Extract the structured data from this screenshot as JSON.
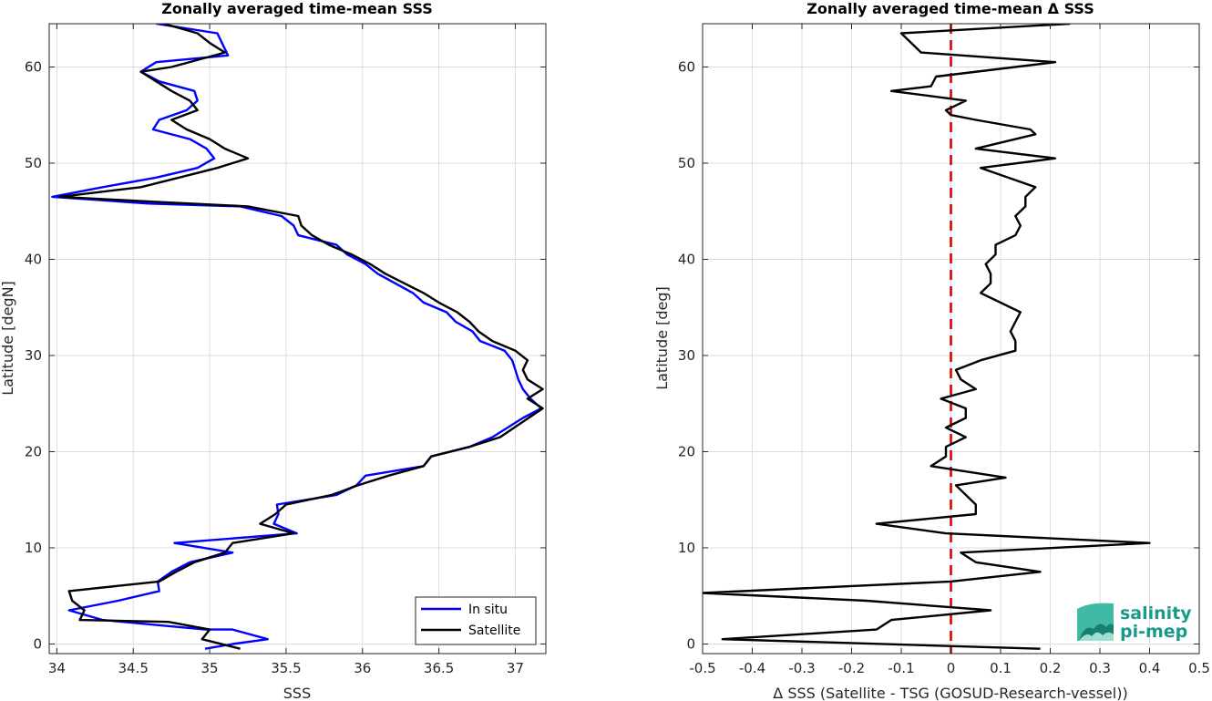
{
  "chart_data": [
    {
      "type": "line",
      "title": "Zonally averaged time-mean SSS",
      "xlabel": "SSS",
      "ylabel": "Latitude [degN]",
      "xlim": [
        33.95,
        37.2
      ],
      "ylim": [
        -1,
        64.5
      ],
      "xticks": [
        34,
        34.5,
        35,
        35.5,
        36,
        36.5,
        37
      ],
      "xticklabels": [
        "34",
        "34.5",
        "35",
        "35.5",
        "36",
        "36.5",
        "37"
      ],
      "yticks": [
        0,
        10,
        20,
        30,
        40,
        50,
        60
      ],
      "yticklabels": [
        "0",
        "10",
        "20",
        "30",
        "40",
        "50",
        "60"
      ],
      "grid": true,
      "legend_position": "bottom-right",
      "series": [
        {
          "name": "In situ",
          "color": "#0000ff",
          "points": [
            [
              34.97,
              -0.5
            ],
            [
              35.15,
              0.0
            ],
            [
              35.38,
              0.5
            ],
            [
              35.15,
              1.5
            ],
            [
              34.97,
              1.5
            ],
            [
              34.3,
              2.5
            ],
            [
              34.08,
              3.5
            ],
            [
              34.4,
              4.5
            ],
            [
              34.67,
              5.5
            ],
            [
              34.66,
              6.5
            ],
            [
              34.75,
              7.5
            ],
            [
              34.87,
              8.5
            ],
            [
              35.15,
              9.5
            ],
            [
              34.77,
              10.5
            ],
            [
              35.57,
              11.5
            ],
            [
              35.42,
              12.5
            ],
            [
              35.45,
              13.5
            ],
            [
              35.44,
              14.5
            ],
            [
              35.83,
              15.5
            ],
            [
              35.96,
              16.5
            ],
            [
              36.02,
              17.5
            ],
            [
              36.4,
              18.5
            ],
            [
              36.45,
              19.5
            ],
            [
              36.7,
              20.5
            ],
            [
              36.85,
              21.5
            ],
            [
              37.05,
              23.5
            ],
            [
              37.17,
              24.5
            ],
            [
              37.1,
              25.5
            ],
            [
              37.05,
              26.5
            ],
            [
              37.02,
              27.5
            ],
            [
              37.0,
              28.5
            ],
            [
              36.98,
              29.5
            ],
            [
              36.93,
              30.5
            ],
            [
              36.77,
              31.5
            ],
            [
              36.72,
              32.5
            ],
            [
              36.61,
              33.5
            ],
            [
              36.55,
              34.5
            ],
            [
              36.4,
              35.5
            ],
            [
              36.33,
              36.5
            ],
            [
              36.1,
              38.5
            ],
            [
              36.02,
              39.5
            ],
            [
              35.9,
              40.5
            ],
            [
              35.83,
              41.5
            ],
            [
              35.58,
              42.5
            ],
            [
              35.55,
              43.5
            ],
            [
              35.47,
              44.5
            ],
            [
              35.2,
              45.5
            ],
            [
              34.6,
              45.8
            ],
            [
              33.97,
              46.5
            ],
            [
              34.3,
              47.5
            ],
            [
              34.65,
              48.5
            ],
            [
              34.92,
              49.5
            ],
            [
              35.03,
              50.5
            ],
            [
              34.98,
              51.5
            ],
            [
              34.87,
              52.5
            ],
            [
              34.63,
              53.5
            ],
            [
              34.67,
              54.5
            ],
            [
              34.85,
              55.5
            ],
            [
              34.92,
              56.5
            ],
            [
              34.9,
              57.5
            ],
            [
              34.67,
              58.5
            ],
            [
              34.55,
              59.5
            ],
            [
              34.65,
              60.5
            ],
            [
              35.12,
              61.2
            ],
            [
              35.05,
              63.5
            ],
            [
              34.65,
              64.5
            ]
          ]
        },
        {
          "name": "Satellite",
          "color": "#000000",
          "points": [
            [
              35.2,
              -0.5
            ],
            [
              34.95,
              0.5
            ],
            [
              35.0,
              1.5
            ],
            [
              34.73,
              2.3
            ],
            [
              34.15,
              2.5
            ],
            [
              34.18,
              3.5
            ],
            [
              34.1,
              4.5
            ],
            [
              34.08,
              5.5
            ],
            [
              34.67,
              6.5
            ],
            [
              34.78,
              7.5
            ],
            [
              34.9,
              8.5
            ],
            [
              35.1,
              9.5
            ],
            [
              35.15,
              10.5
            ],
            [
              35.55,
              11.5
            ],
            [
              35.33,
              12.5
            ],
            [
              35.43,
              13.5
            ],
            [
              35.5,
              14.5
            ],
            [
              35.8,
              15.5
            ],
            [
              35.97,
              16.5
            ],
            [
              36.17,
              17.5
            ],
            [
              36.4,
              18.5
            ],
            [
              36.45,
              19.5
            ],
            [
              36.7,
              20.5
            ],
            [
              36.9,
              21.5
            ],
            [
              37.18,
              24.5
            ],
            [
              37.08,
              25.5
            ],
            [
              37.18,
              26.5
            ],
            [
              37.08,
              27.5
            ],
            [
              37.05,
              28.5
            ],
            [
              37.08,
              29.5
            ],
            [
              37.0,
              30.5
            ],
            [
              36.85,
              31.5
            ],
            [
              36.76,
              32.5
            ],
            [
              36.7,
              33.5
            ],
            [
              36.62,
              34.5
            ],
            [
              36.5,
              35.5
            ],
            [
              36.4,
              36.5
            ],
            [
              36.15,
              38.5
            ],
            [
              36.05,
              39.5
            ],
            [
              35.93,
              40.5
            ],
            [
              35.78,
              41.5
            ],
            [
              35.67,
              42.5
            ],
            [
              35.6,
              43.5
            ],
            [
              35.58,
              44.5
            ],
            [
              35.25,
              45.5
            ],
            [
              34.62,
              46.0
            ],
            [
              34.02,
              46.5
            ],
            [
              34.55,
              47.5
            ],
            [
              34.8,
              48.5
            ],
            [
              35.05,
              49.5
            ],
            [
              35.25,
              50.5
            ],
            [
              35.1,
              51.5
            ],
            [
              35.0,
              52.5
            ],
            [
              34.85,
              53.5
            ],
            [
              34.75,
              54.5
            ],
            [
              34.92,
              55.5
            ],
            [
              34.87,
              56.5
            ],
            [
              34.75,
              57.5
            ],
            [
              34.55,
              59.5
            ],
            [
              34.75,
              60.0
            ],
            [
              35.1,
              61.5
            ],
            [
              35.0,
              62.5
            ],
            [
              34.92,
              63.5
            ],
            [
              34.7,
              64.5
            ]
          ]
        }
      ]
    },
    {
      "type": "line",
      "title": "Zonally averaged time-mean Δ SSS",
      "xlabel": "Δ SSS (Satellite - TSG (GOSUD-Research-vessel))",
      "ylabel": "Latitude [deg]",
      "xlim": [
        -0.5,
        0.5
      ],
      "ylim": [
        -1,
        64.5
      ],
      "xticks": [
        -0.5,
        -0.4,
        -0.3,
        -0.2,
        -0.1,
        0,
        0.1,
        0.2,
        0.3,
        0.4,
        0.5
      ],
      "xticklabels": [
        "-0.5",
        "-0.4",
        "-0.3",
        "-0.2",
        "-0.1",
        "0",
        "0.1",
        "0.2",
        "0.3",
        "0.4",
        "0.5"
      ],
      "yticks": [
        0,
        10,
        20,
        30,
        40,
        50,
        60
      ],
      "yticklabels": [
        "0",
        "10",
        "20",
        "30",
        "40",
        "50",
        "60"
      ],
      "grid": true,
      "reference_line": {
        "x": 0,
        "color": "#dd0000",
        "style": "dashed"
      },
      "series": [
        {
          "name": "",
          "color": "#000000",
          "points": [
            [
              0.18,
              -0.5
            ],
            [
              -0.46,
              0.5
            ],
            [
              -0.15,
              1.5
            ],
            [
              -0.12,
              2.5
            ],
            [
              0.08,
              3.5
            ],
            [
              -0.17,
              4.5
            ],
            [
              -0.5,
              5.3
            ],
            [
              0.0,
              6.5
            ],
            [
              0.18,
              7.5
            ],
            [
              0.05,
              8.5
            ],
            [
              0.02,
              9.5
            ],
            [
              0.4,
              10.5
            ],
            [
              -0.01,
              11.5
            ],
            [
              -0.15,
              12.5
            ],
            [
              0.05,
              13.5
            ],
            [
              0.05,
              14.5
            ],
            [
              0.03,
              15.5
            ],
            [
              0.01,
              16.5
            ],
            [
              0.11,
              17.3
            ],
            [
              -0.04,
              18.5
            ],
            [
              -0.01,
              19.5
            ],
            [
              -0.01,
              20.5
            ],
            [
              0.03,
              21.5
            ],
            [
              -0.01,
              22.5
            ],
            [
              0.03,
              23.5
            ],
            [
              0.03,
              24.5
            ],
            [
              -0.02,
              25.5
            ],
            [
              0.05,
              26.5
            ],
            [
              0.02,
              27.5
            ],
            [
              0.01,
              28.5
            ],
            [
              0.06,
              29.5
            ],
            [
              0.13,
              30.5
            ],
            [
              0.13,
              31.5
            ],
            [
              0.12,
              32.5
            ],
            [
              0.13,
              33.5
            ],
            [
              0.14,
              34.5
            ],
            [
              0.06,
              36.5
            ],
            [
              0.08,
              37.5
            ],
            [
              0.08,
              38.5
            ],
            [
              0.07,
              39.5
            ],
            [
              0.09,
              40.5
            ],
            [
              0.09,
              41.5
            ],
            [
              0.13,
              42.5
            ],
            [
              0.14,
              43.5
            ],
            [
              0.13,
              44.5
            ],
            [
              0.15,
              45.5
            ],
            [
              0.15,
              46.5
            ],
            [
              0.17,
              47.5
            ],
            [
              0.06,
              49.5
            ],
            [
              0.21,
              50.5
            ],
            [
              0.05,
              51.5
            ],
            [
              0.17,
              53.0
            ],
            [
              0.16,
              53.5
            ],
            [
              0.05,
              54.5
            ],
            [
              0.0,
              55.0
            ],
            [
              -0.01,
              55.5
            ],
            [
              0.03,
              56.5
            ],
            [
              -0.12,
              57.5
            ],
            [
              -0.04,
              58.0
            ],
            [
              -0.03,
              59.0
            ],
            [
              0.21,
              60.5
            ],
            [
              -0.06,
              61.5
            ],
            [
              -0.1,
              63.5
            ],
            [
              0.24,
              64.5
            ]
          ]
        }
      ]
    }
  ],
  "legend": {
    "entries": [
      {
        "label": "In situ",
        "color": "#0000ff"
      },
      {
        "label": "Satellite",
        "color": "#000000"
      }
    ]
  },
  "logo": {
    "line1": "salinity",
    "line2": "pi-mep",
    "color": "#1a9a8a"
  }
}
